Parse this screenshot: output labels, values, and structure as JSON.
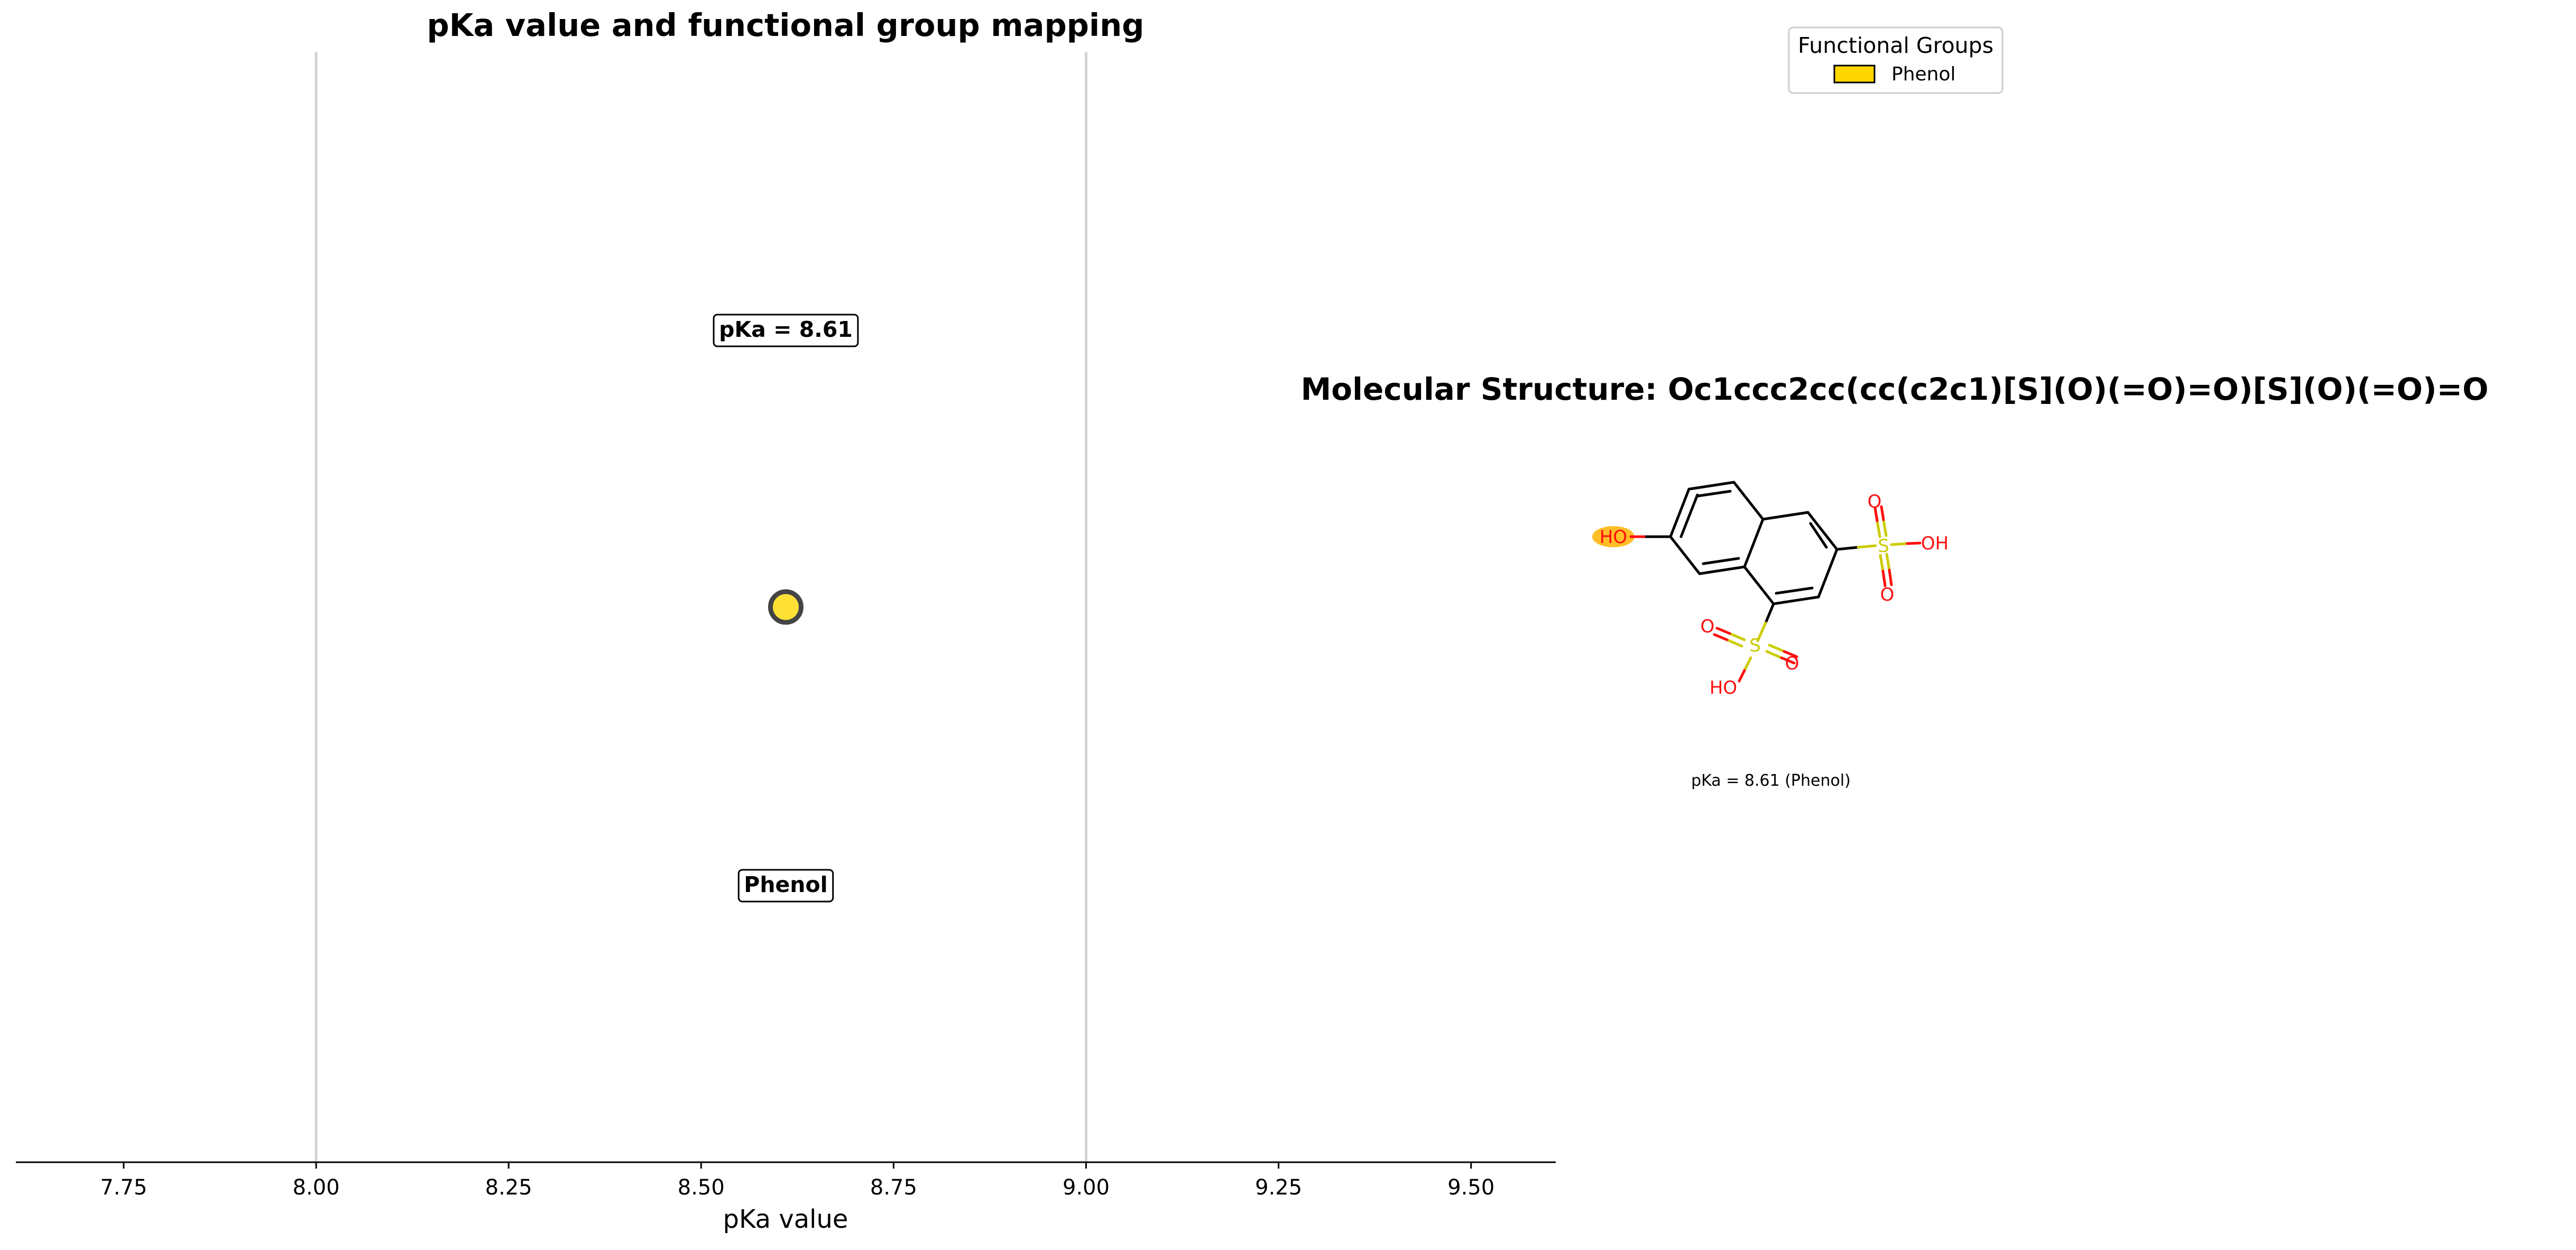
{
  "chart_data": [
    {
      "type": "scatter",
      "title": "pKa value and functional group mapping",
      "xlabel": "pKa value",
      "ylabel": "",
      "xlim": [
        7.61,
        9.61
      ],
      "xticks": [
        7.75,
        8.0,
        8.25,
        8.5,
        8.75,
        9.0,
        9.25,
        9.5
      ],
      "xtick_labels": [
        "7.75",
        "8.00",
        "8.25",
        "8.50",
        "8.75",
        "9.00",
        "9.25",
        "9.50"
      ],
      "vlines": [
        8.0,
        9.0
      ],
      "grid": false,
      "points": [
        {
          "x": 8.61,
          "color": "#FFE135",
          "group": "Phenol"
        }
      ],
      "annotations": {
        "pka_label": "pKa = 8.61",
        "group_label": "Phenol"
      }
    },
    {
      "type": "other",
      "title": "Molecular Structure: Oc1ccc2cc(cc(c2c1)[S](O)(=O)=O)[S](O)(=O)=O",
      "caption": "pKa = 8.61 (Phenol)",
      "atom_labels": {
        "phenol_oh": "HO",
        "sulfonyl1_o_top": "O",
        "sulfonyl1_s": "S",
        "sulfonyl1_oh": "OH",
        "sulfonyl1_o_bottom": "O",
        "sulfonyl2_o_left": "O",
        "sulfonyl2_s": "S",
        "sulfonyl2_o_right": "O",
        "sulfonyl2_oh": "HO"
      }
    }
  ],
  "legend": {
    "title": "Functional Groups",
    "placement": "top-right",
    "entries": [
      {
        "label": "Phenol",
        "color": "#FFD700"
      }
    ]
  },
  "colors": {
    "oxygen": "#FF0D0D",
    "sulfur": "#CCCC00",
    "highlight": "#FFB300",
    "vline": "#d3d3d3",
    "marker_edge": "#444444"
  }
}
